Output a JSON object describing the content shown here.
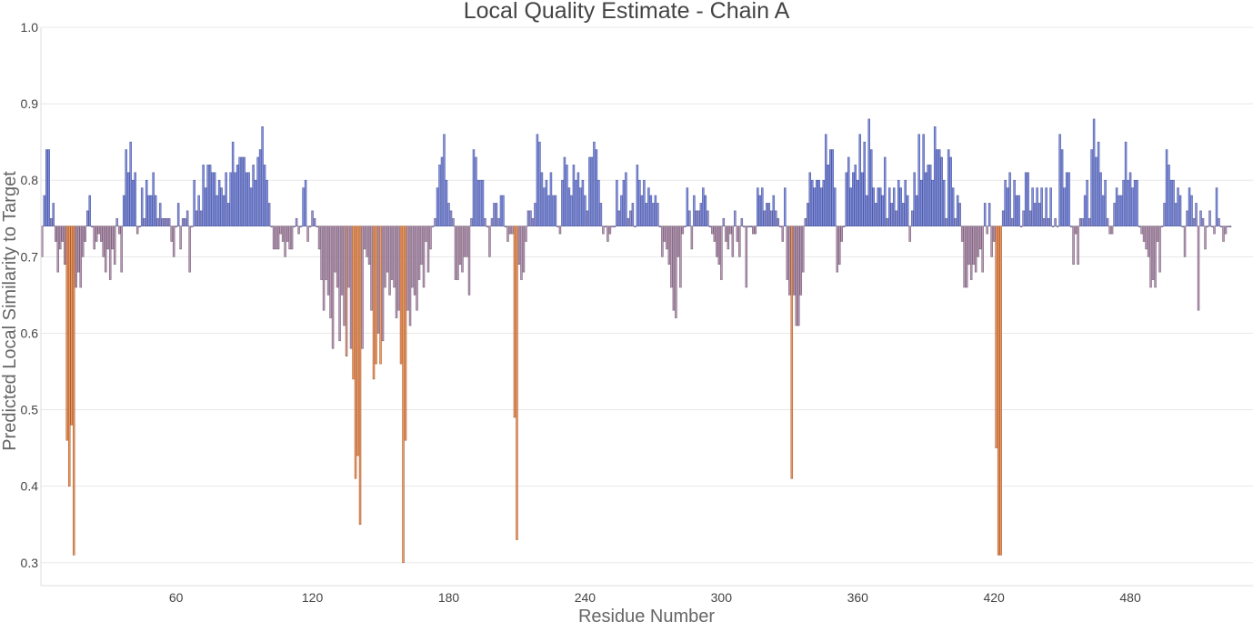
{
  "chart_data": {
    "type": "bar",
    "title": "Local Quality Estimate - Chain A",
    "xlabel": "Residue Number",
    "ylabel": "Predicted Local Similarity to Target",
    "baseline": 0.74,
    "x_start": 1,
    "xlim": [
      0.5,
      534
    ],
    "ylim": [
      0.27,
      1.0
    ],
    "xticks": [
      60,
      120,
      180,
      240,
      300,
      360,
      420,
      480,
      540
    ],
    "yticks": [
      0.3,
      0.4,
      0.5,
      0.6,
      0.7,
      0.8,
      0.9,
      1.0
    ],
    "colors": {
      "high": "#7080e0",
      "mid": "#b08aa8",
      "low": "#f08848"
    },
    "grid": true,
    "legend": "none",
    "values": [
      0.7,
      0.78,
      0.84,
      0.84,
      0.75,
      0.77,
      0.72,
      0.68,
      0.71,
      0.72,
      0.69,
      0.46,
      0.4,
      0.48,
      0.31,
      0.66,
      0.68,
      0.66,
      0.7,
      0.72,
      0.76,
      0.78,
      0.74,
      0.71,
      0.72,
      0.73,
      0.72,
      0.7,
      0.68,
      0.71,
      0.67,
      0.71,
      0.69,
      0.75,
      0.73,
      0.68,
      0.78,
      0.84,
      0.81,
      0.85,
      0.8,
      0.81,
      0.73,
      0.74,
      0.79,
      0.75,
      0.8,
      0.78,
      0.78,
      0.81,
      0.78,
      0.75,
      0.77,
      0.75,
      0.75,
      0.75,
      0.75,
      0.72,
      0.7,
      0.74,
      0.77,
      0.71,
      0.75,
      0.75,
      0.76,
      0.68,
      0.74,
      0.8,
      0.76,
      0.78,
      0.76,
      0.82,
      0.79,
      0.82,
      0.82,
      0.81,
      0.81,
      0.78,
      0.8,
      0.79,
      0.78,
      0.81,
      0.77,
      0.81,
      0.85,
      0.81,
      0.82,
      0.83,
      0.83,
      0.83,
      0.81,
      0.81,
      0.79,
      0.82,
      0.8,
      0.83,
      0.84,
      0.87,
      0.82,
      0.8,
      0.77,
      0.74,
      0.71,
      0.71,
      0.71,
      0.73,
      0.72,
      0.7,
      0.72,
      0.71,
      0.71,
      0.74,
      0.75,
      0.73,
      0.74,
      0.79,
      0.8,
      0.72,
      0.74,
      0.76,
      0.75,
      0.74,
      0.71,
      0.67,
      0.63,
      0.67,
      0.65,
      0.62,
      0.58,
      0.68,
      0.66,
      0.59,
      0.65,
      0.61,
      0.57,
      0.66,
      0.58,
      0.54,
      0.41,
      0.44,
      0.35,
      0.58,
      0.71,
      0.7,
      0.69,
      0.63,
      0.54,
      0.56,
      0.6,
      0.56,
      0.59,
      0.66,
      0.68,
      0.65,
      0.67,
      0.66,
      0.62,
      0.63,
      0.56,
      0.3,
      0.46,
      0.63,
      0.61,
      0.66,
      0.65,
      0.63,
      0.67,
      0.69,
      0.66,
      0.72,
      0.68,
      0.71,
      0.74,
      0.75,
      0.79,
      0.82,
      0.83,
      0.86,
      0.8,
      0.77,
      0.76,
      0.75,
      0.67,
      0.67,
      0.69,
      0.68,
      0.7,
      0.7,
      0.65,
      0.75,
      0.84,
      0.83,
      0.8,
      0.8,
      0.8,
      0.75,
      0.74,
      0.7,
      0.75,
      0.77,
      0.77,
      0.75,
      0.78,
      0.78,
      0.74,
      0.72,
      0.73,
      0.73,
      0.49,
      0.33,
      0.69,
      0.67,
      0.68,
      0.72,
      0.76,
      0.76,
      0.75,
      0.77,
      0.86,
      0.85,
      0.81,
      0.79,
      0.8,
      0.78,
      0.81,
      0.78,
      0.78,
      0.74,
      0.73,
      0.8,
      0.83,
      0.82,
      0.79,
      0.78,
      0.82,
      0.8,
      0.81,
      0.79,
      0.8,
      0.78,
      0.76,
      0.83,
      0.83,
      0.85,
      0.84,
      0.8,
      0.77,
      0.73,
      0.74,
      0.72,
      0.73,
      0.74,
      0.74,
      0.8,
      0.76,
      0.78,
      0.8,
      0.81,
      0.75,
      0.76,
      0.77,
      0.74,
      0.82,
      0.8,
      0.78,
      0.8,
      0.77,
      0.79,
      0.78,
      0.77,
      0.78,
      0.77,
      0.74,
      0.7,
      0.72,
      0.71,
      0.69,
      0.66,
      0.63,
      0.62,
      0.7,
      0.66,
      0.73,
      0.74,
      0.79,
      0.76,
      0.71,
      0.78,
      0.76,
      0.76,
      0.77,
      0.79,
      0.78,
      0.76,
      0.74,
      0.73,
      0.72,
      0.7,
      0.69,
      0.67,
      0.75,
      0.72,
      0.71,
      0.73,
      0.7,
      0.76,
      0.72,
      0.7,
      0.75,
      0.74,
      0.66,
      0.74,
      0.74,
      0.73,
      0.73,
      0.79,
      0.78,
      0.79,
      0.76,
      0.77,
      0.77,
      0.76,
      0.78,
      0.76,
      0.75,
      0.74,
      0.72,
      0.79,
      0.67,
      0.65,
      0.41,
      0.65,
      0.61,
      0.61,
      0.65,
      0.68,
      0.75,
      0.77,
      0.81,
      0.8,
      0.79,
      0.8,
      0.8,
      0.79,
      0.8,
      0.86,
      0.82,
      0.84,
      0.84,
      0.79,
      0.68,
      0.69,
      0.72,
      0.74,
      0.81,
      0.83,
      0.79,
      0.81,
      0.82,
      0.8,
      0.86,
      0.81,
      0.85,
      0.78,
      0.88,
      0.84,
      0.79,
      0.77,
      0.79,
      0.79,
      0.78,
      0.83,
      0.75,
      0.79,
      0.77,
      0.79,
      0.76,
      0.8,
      0.79,
      0.77,
      0.8,
      0.78,
      0.72,
      0.76,
      0.81,
      0.78,
      0.86,
      0.8,
      0.86,
      0.81,
      0.82,
      0.82,
      0.8,
      0.87,
      0.84,
      0.84,
      0.83,
      0.8,
      0.75,
      0.84,
      0.83,
      0.79,
      0.75,
      0.78,
      0.77,
      0.72,
      0.66,
      0.66,
      0.69,
      0.67,
      0.69,
      0.68,
      0.7,
      0.71,
      0.68,
      0.77,
      0.73,
      0.77,
      0.7,
      0.72,
      0.45,
      0.31,
      0.31,
      0.76,
      0.8,
      0.79,
      0.81,
      0.75,
      0.8,
      0.78,
      0.78,
      0.74,
      0.76,
      0.81,
      0.81,
      0.76,
      0.79,
      0.77,
      0.79,
      0.77,
      0.79,
      0.75,
      0.79,
      0.75,
      0.79,
      0.74,
      0.75,
      0.74,
      0.86,
      0.84,
      0.79,
      0.81,
      0.81,
      0.74,
      0.69,
      0.73,
      0.69,
      0.75,
      0.75,
      0.78,
      0.8,
      0.75,
      0.84,
      0.88,
      0.83,
      0.85,
      0.81,
      0.78,
      0.8,
      0.75,
      0.73,
      0.73,
      0.77,
      0.79,
      0.78,
      0.78,
      0.8,
      0.85,
      0.8,
      0.81,
      0.79,
      0.8,
      0.8,
      0.74,
      0.73,
      0.72,
      0.71,
      0.7,
      0.66,
      0.67,
      0.66,
      0.72,
      0.68,
      0.74,
      0.77,
      0.84,
      0.82,
      0.8,
      0.8,
      0.77,
      0.79,
      0.78,
      0.74,
      0.7,
      0.76,
      0.79,
      0.78,
      0.75,
      0.77,
      0.63,
      0.76,
      0.75,
      0.71,
      0.74,
      0.76,
      0.74,
      0.73,
      0.79,
      0.75,
      0.74,
      0.72,
      0.73,
      0.74,
      0.74
    ]
  }
}
